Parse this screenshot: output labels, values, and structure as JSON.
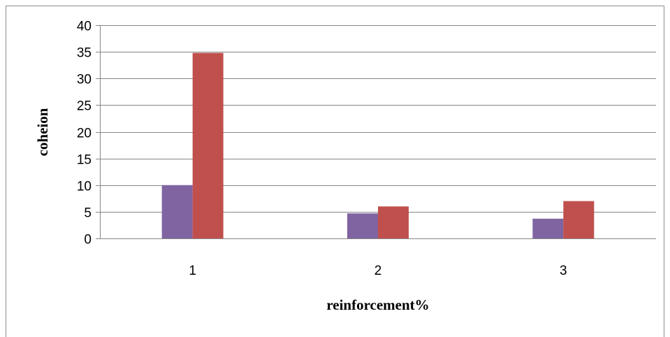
{
  "chart_data": {
    "type": "bar",
    "categories": [
      "1",
      "2",
      "3"
    ],
    "series": [
      {
        "values": [
          10,
          4.7,
          3.7
        ],
        "color": "#8064A2"
      },
      {
        "values": [
          34.8,
          6.0,
          7.0
        ],
        "color": "#C0504D"
      }
    ],
    "xlabel": "reinforcement%",
    "ylabel": "coheion",
    "ylim": [
      0,
      40
    ],
    "yticks": [
      "0",
      "5",
      "10",
      "15",
      "20",
      "25",
      "30",
      "35",
      "40"
    ],
    "grid": true,
    "gridline_color": "#868686"
  }
}
